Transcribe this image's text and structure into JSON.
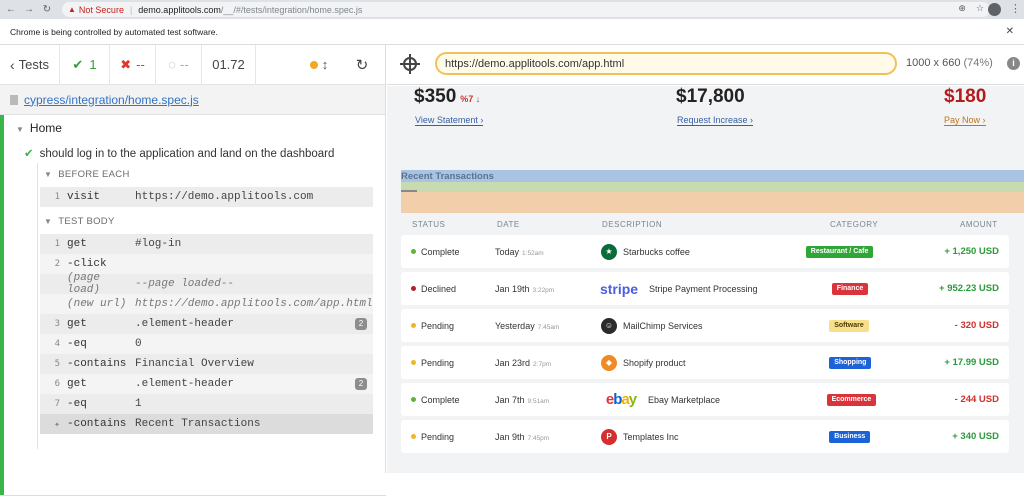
{
  "browser": {
    "security_label": "Not Secure",
    "url_host": "demo.applitools.com",
    "url_rest": "/__/#/tests/integration/home.spec.js",
    "infobar_text": "Chrome is being controlled by automated test software."
  },
  "reporter": {
    "tests_label": "Tests",
    "passed_count": "1",
    "failed_count": "--",
    "pending_count": "--",
    "duration": "01.72",
    "spec_path": "cypress/integration/home.spec.js",
    "suite_title": "Home",
    "test_title": "should log in to the application and land on the dashboard",
    "before_each_label": "BEFORE EACH",
    "test_body_label": "TEST BODY",
    "before_each": [
      {
        "num": "1",
        "name": "visit",
        "message": "https://demo.applitools.com"
      }
    ],
    "commands": [
      {
        "num": "1",
        "name": "get",
        "message": "#log-in",
        "badge": ""
      },
      {
        "num": "2",
        "name": "-click",
        "message": "",
        "badge": ""
      },
      {
        "num": "",
        "name": "(page load)",
        "message": "--page loaded--",
        "badge": ""
      },
      {
        "num": "",
        "name": "(new url)",
        "message": "https://demo.applitools.com/app.html",
        "badge": ""
      },
      {
        "num": "3",
        "name": "get",
        "message": ".element-header",
        "badge": "2"
      },
      {
        "num": "4",
        "name": "-eq",
        "message": "0",
        "badge": ""
      },
      {
        "num": "5",
        "name": "-contains",
        "message": "Financial Overview",
        "badge": ""
      },
      {
        "num": "6",
        "name": "get",
        "message": ".element-header",
        "badge": "2"
      },
      {
        "num": "7",
        "name": "-eq",
        "message": "1",
        "badge": ""
      },
      {
        "num": "",
        "name": "-contains",
        "message": "Recent Transactions",
        "badge": ""
      }
    ]
  },
  "aut": {
    "url": "https://demo.applitools.com/app.html",
    "viewport": "1000 x 660",
    "zoom": "(74%)",
    "balances": [
      {
        "amount": "$350",
        "extra": "%7 ↓",
        "link": "View Statement"
      },
      {
        "amount": "$17,800",
        "extra": "",
        "link": "Request Increase"
      },
      {
        "amount": "$180",
        "extra": "",
        "link": "Pay Now"
      }
    ],
    "section_title": "Recent Transactions",
    "columns": [
      "STATUS",
      "DATE",
      "DESCRIPTION",
      "CATEGORY",
      "AMOUNT"
    ],
    "transactions": [
      {
        "status": "Complete",
        "status_color": "#5bb638",
        "date": "Today",
        "time": "1:52am",
        "logo": "starbucks-logo",
        "description": "Starbucks coffee",
        "category": "Restaurant / Cafe",
        "category_color": "#2fa636",
        "amount": "+ 1,250 USD",
        "sign": "pos"
      },
      {
        "status": "Declined",
        "status_color": "#b3202b",
        "date": "Jan 19th",
        "time": "3:22pm",
        "logo": "stripe-logo",
        "logo_text": "stripe",
        "description": "Stripe Payment Processing",
        "category": "Finance",
        "category_color": "#d9343b",
        "amount": "+ 952.23 USD",
        "sign": "pos"
      },
      {
        "status": "Pending",
        "status_color": "#f2b623",
        "date": "Yesterday",
        "time": "7:45am",
        "logo": "mailchimp-logo",
        "description": "MailChimp Services",
        "category": "Software",
        "category_color": "#f7e08b",
        "amount": "- 320 USD",
        "sign": "neg"
      },
      {
        "status": "Pending",
        "status_color": "#f2b623",
        "date": "Jan 23rd",
        "time": "2:7pm",
        "logo": "shopify-logo",
        "description": "Shopify product",
        "category": "Shopping",
        "category_color": "#1c63d8",
        "amount": "+ 17.99 USD",
        "sign": "pos"
      },
      {
        "status": "Complete",
        "status_color": "#5bb638",
        "date": "Jan 7th",
        "time": "9:51am",
        "logo": "ebay-logo",
        "logo_text": "ebay",
        "description": "Ebay Marketplace",
        "category": "Ecommerce",
        "category_color": "#d9343b",
        "amount": "- 244 USD",
        "sign": "neg"
      },
      {
        "status": "Pending",
        "status_color": "#f2b623",
        "date": "Jan 9th",
        "time": "7:45pm",
        "logo": "templates-logo",
        "logo_text": "P",
        "description": "Templates Inc",
        "category": "Business",
        "category_color": "#1c63d8",
        "amount": "+ 340 USD",
        "sign": "pos"
      }
    ]
  }
}
